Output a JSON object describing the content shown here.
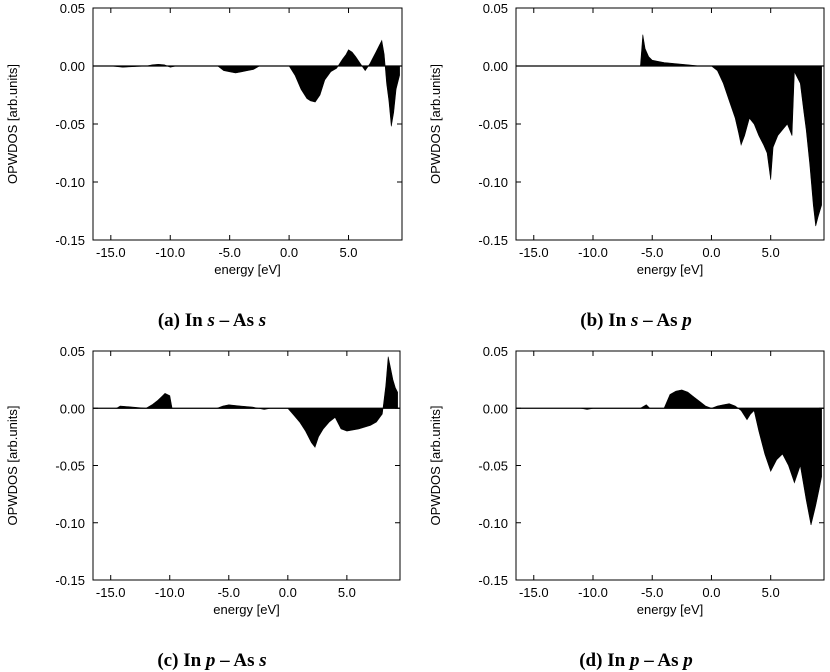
{
  "chart_data": [
    {
      "type": "area",
      "caption": {
        "label": "(a)",
        "a_orb": "s",
        "b_orb": "s"
      },
      "xlabel": "energy [eV]",
      "ylabel": "OPWDOS [arb.units]",
      "xlim": [
        -16.5,
        9.5
      ],
      "ylim": [
        -0.15,
        0.05
      ],
      "xticks": [
        -15.0,
        -10.0,
        -5.0,
        0.0,
        5.0
      ],
      "xtick_labels": [
        "-15.0",
        "-10.0",
        "-5.0",
        "0.0",
        "5.0"
      ],
      "yticks": [
        0.05,
        0.0,
        -0.05,
        -0.1,
        -0.15
      ],
      "ytick_labels": [
        "0.05",
        "0.00",
        "-0.05",
        "-0.10",
        "-0.15"
      ],
      "x": [
        -15.0,
        -14.0,
        -13.0,
        -12.0,
        -11.5,
        -11.0,
        -10.5,
        -10.0,
        -9.5,
        -6.0,
        -5.5,
        -5.0,
        -4.5,
        -4.0,
        -3.5,
        -3.0,
        -2.5,
        0.0,
        0.5,
        1.0,
        1.5,
        1.8,
        2.2,
        2.6,
        3.0,
        3.5,
        4.0,
        4.5,
        4.8,
        5.0,
        5.3,
        5.6,
        6.0,
        6.4,
        6.8,
        7.0,
        7.3,
        7.6,
        7.8,
        8.0,
        8.2,
        8.4,
        8.6,
        8.8,
        9.0,
        9.3
      ],
      "y": [
        0.0,
        -0.001,
        -0.0005,
        0.0,
        0.001,
        0.0015,
        0.001,
        -0.001,
        0.0,
        0.0,
        -0.004,
        -0.005,
        -0.006,
        -0.005,
        -0.004,
        -0.003,
        0.0,
        0.0,
        -0.008,
        -0.02,
        -0.028,
        -0.03,
        -0.031,
        -0.025,
        -0.012,
        -0.005,
        -0.002,
        0.006,
        0.01,
        0.014,
        0.012,
        0.008,
        0.002,
        -0.004,
        0.002,
        0.006,
        0.012,
        0.018,
        0.022,
        0.01,
        -0.015,
        -0.03,
        -0.052,
        -0.04,
        -0.02,
        -0.008
      ]
    },
    {
      "type": "area",
      "caption": {
        "label": "(b)",
        "a_orb": "s",
        "b_orb": "p"
      },
      "xlabel": "energy [eV]",
      "ylabel": "OPWDOS [arb.units]",
      "xlim": [
        -16.5,
        9.5
      ],
      "ylim": [
        -0.15,
        0.05
      ],
      "xticks": [
        -15.0,
        -10.0,
        -5.0,
        0.0,
        5.0
      ],
      "xtick_labels": [
        "-15.0",
        "-10.0",
        "-5.0",
        "0.0",
        "5.0"
      ],
      "yticks": [
        0.05,
        0.0,
        -0.05,
        -0.1,
        -0.15
      ],
      "ytick_labels": [
        "0.05",
        "0.00",
        "-0.05",
        "-0.10",
        "-0.15"
      ],
      "x": [
        -6.0,
        -5.8,
        -5.6,
        -5.3,
        -5.0,
        -4.5,
        -4.0,
        -3.0,
        -2.0,
        -1.0,
        0.0,
        0.5,
        1.0,
        1.5,
        2.0,
        2.3,
        2.5,
        2.8,
        3.2,
        3.6,
        4.0,
        4.4,
        4.7,
        5.0,
        5.2,
        5.6,
        6.0,
        6.4,
        6.8,
        7.0,
        7.5,
        7.8,
        8.0,
        8.3,
        8.6,
        8.8,
        9.0,
        9.3
      ],
      "y": [
        0.0,
        0.027,
        0.015,
        0.008,
        0.005,
        0.004,
        0.003,
        0.002,
        0.001,
        0.0,
        0.0,
        -0.004,
        -0.015,
        -0.03,
        -0.045,
        -0.058,
        -0.068,
        -0.06,
        -0.045,
        -0.05,
        -0.06,
        -0.068,
        -0.075,
        -0.098,
        -0.07,
        -0.06,
        -0.055,
        -0.05,
        -0.06,
        -0.005,
        -0.015,
        -0.04,
        -0.055,
        -0.085,
        -0.12,
        -0.138,
        -0.13,
        -0.12
      ]
    },
    {
      "type": "area",
      "caption": {
        "label": "(c)",
        "a_orb": "p",
        "b_orb": "s"
      },
      "xlabel": "energy [eV]",
      "ylabel": "OPWDOS [arb.units]",
      "xlim": [
        -16.5,
        9.5
      ],
      "ylim": [
        -0.15,
        0.05
      ],
      "xticks": [
        -15.0,
        -10.0,
        -5.0,
        0.0,
        5.0
      ],
      "xtick_labels": [
        "-15.0",
        "-10.0",
        "-5.0",
        "0.0",
        "5.0"
      ],
      "yticks": [
        0.05,
        0.0,
        -0.05,
        -0.1,
        -0.15
      ],
      "ytick_labels": [
        "0.05",
        "0.00",
        "-0.05",
        "-0.10",
        "-0.15"
      ],
      "x": [
        -14.5,
        -14.2,
        -12.0,
        -11.5,
        -11.0,
        -10.7,
        -10.4,
        -10.0,
        -9.8,
        -6.0,
        -5.5,
        -5.0,
        -4.0,
        -3.0,
        -2.0,
        -1.5,
        0.0,
        0.5,
        1.0,
        1.5,
        2.0,
        2.3,
        2.6,
        3.0,
        3.5,
        4.0,
        4.5,
        5.0,
        6.0,
        7.0,
        7.5,
        8.0,
        8.3,
        8.5,
        8.7,
        8.9,
        9.1,
        9.3
      ],
      "y": [
        0.0,
        0.002,
        0.0,
        0.003,
        0.007,
        0.01,
        0.013,
        0.011,
        0.0,
        0.0,
        0.002,
        0.003,
        0.002,
        0.001,
        -0.001,
        0.0,
        0.0,
        -0.006,
        -0.012,
        -0.02,
        -0.03,
        -0.034,
        -0.025,
        -0.018,
        -0.012,
        -0.008,
        -0.018,
        -0.02,
        -0.018,
        -0.015,
        -0.012,
        -0.005,
        0.02,
        0.045,
        0.035,
        0.025,
        0.018,
        0.014
      ]
    },
    {
      "type": "area",
      "caption": {
        "label": "(d)",
        "a_orb": "p",
        "b_orb": "p"
      },
      "xlabel": "energy [eV]",
      "ylabel": "OPWDOS [arb.units]",
      "xlim": [
        -16.5,
        9.5
      ],
      "ylim": [
        -0.15,
        0.05
      ],
      "xticks": [
        -15.0,
        -10.0,
        -5.0,
        0.0,
        5.0
      ],
      "xtick_labels": [
        "-15.0",
        "-10.0",
        "-5.0",
        "0.0",
        "5.0"
      ],
      "yticks": [
        0.05,
        0.0,
        -0.05,
        -0.1,
        -0.15
      ],
      "ytick_labels": [
        "0.05",
        "0.00",
        "-0.05",
        "-0.10",
        "-0.15"
      ],
      "x": [
        -11.0,
        -10.5,
        -10.0,
        -6.0,
        -5.5,
        -5.2,
        -4.0,
        -3.5,
        -3.0,
        -2.5,
        -2.0,
        -1.5,
        -1.0,
        -0.5,
        0.0,
        0.5,
        1.0,
        1.5,
        2.0,
        2.5,
        3.0,
        3.3,
        3.6,
        4.0,
        4.5,
        5.0,
        5.5,
        6.0,
        6.5,
        7.0,
        7.5,
        8.0,
        8.4,
        8.8,
        9.1,
        9.3
      ],
      "y": [
        0.0,
        -0.001,
        0.0,
        0.0,
        0.003,
        0.0,
        0.0,
        0.012,
        0.015,
        0.016,
        0.014,
        0.01,
        0.006,
        0.002,
        0.0,
        0.002,
        0.003,
        0.004,
        0.002,
        -0.002,
        -0.01,
        -0.005,
        -0.002,
        -0.02,
        -0.04,
        -0.055,
        -0.045,
        -0.04,
        -0.05,
        -0.065,
        -0.05,
        -0.08,
        -0.102,
        -0.085,
        -0.07,
        -0.06
      ]
    }
  ],
  "captions": {
    "a": {
      "label": "(a)",
      "a_el": "In",
      "a_orb": "s",
      "dash": "–",
      "b_el": "As",
      "b_orb": "s"
    },
    "b": {
      "label": "(b)",
      "a_el": "In",
      "a_orb": "s",
      "dash": "–",
      "b_el": "As",
      "b_orb": "p"
    },
    "c": {
      "label": "(c)",
      "a_el": "In",
      "a_orb": "p",
      "dash": "–",
      "b_el": "As",
      "b_orb": "s"
    },
    "d": {
      "label": "(d)",
      "a_el": "In",
      "a_orb": "p",
      "dash": "–",
      "b_el": "As",
      "b_orb": "p"
    }
  }
}
